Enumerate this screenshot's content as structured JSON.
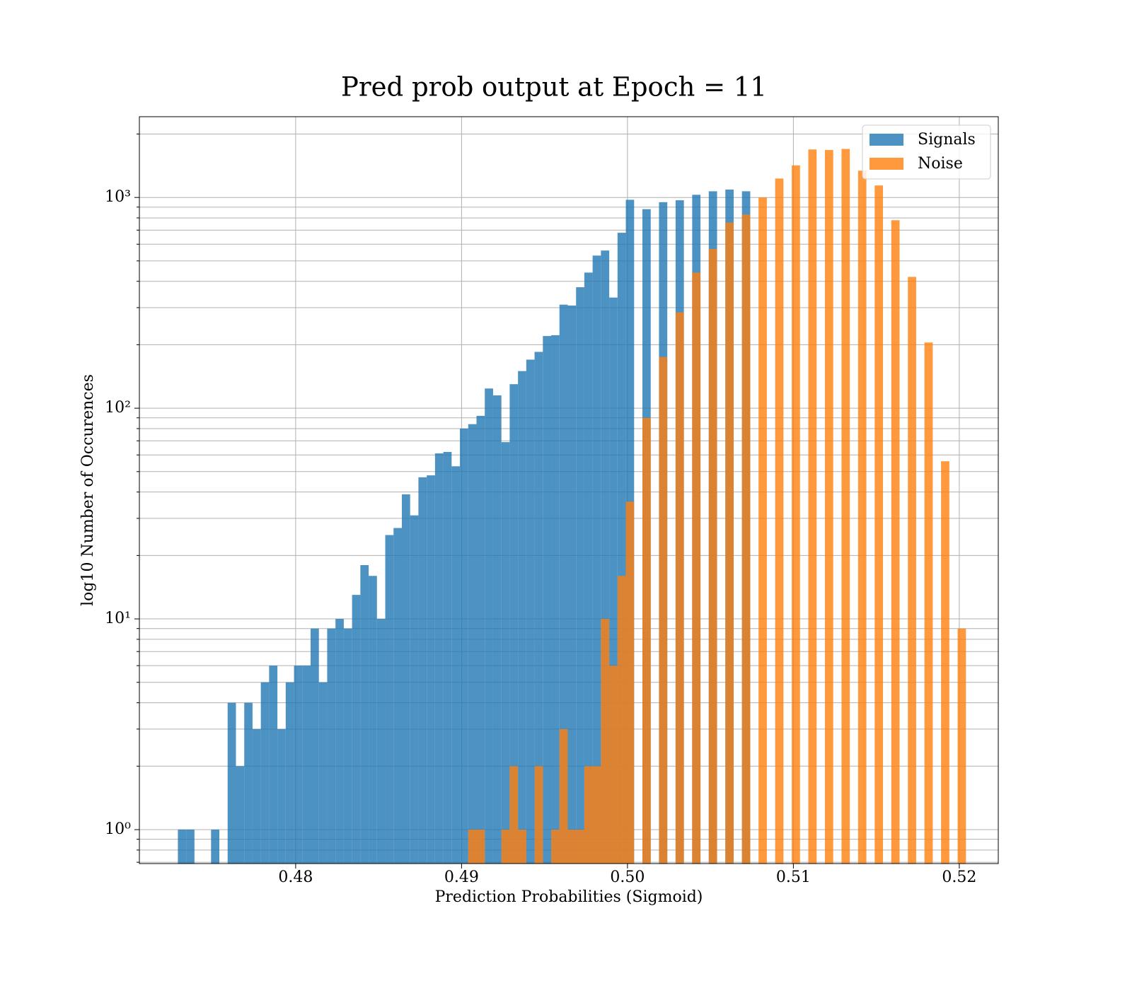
{
  "chart_data": {
    "type": "histogram",
    "title": "Pred prob output at Epoch = 11",
    "xlabel": "Prediction Probabilities (Sigmoid)",
    "ylabel": "log10 Number of Occurences",
    "bins": [
      0.4729,
      0.4734,
      0.4739,
      0.4744,
      0.4749,
      0.4754,
      0.4759,
      0.4764,
      0.4769,
      0.4774,
      0.4779,
      0.4784,
      0.4789,
      0.4794,
      0.4799,
      0.4804,
      0.4809,
      0.4814,
      0.4819,
      0.4824,
      0.4829,
      0.4834,
      0.4839,
      0.4844,
      0.4849,
      0.4854,
      0.4859,
      0.4864,
      0.4869,
      0.4874,
      0.4879,
      0.4884,
      0.4889,
      0.4894,
      0.4899,
      0.4904,
      0.4909,
      0.4914,
      0.4919,
      0.4924,
      0.4929,
      0.4934,
      0.4939,
      0.4944,
      0.4949,
      0.4954,
      0.4959,
      0.4964,
      0.4969,
      0.4974,
      0.4979,
      0.4984,
      0.4989,
      0.4994,
      0.4999,
      0.5004,
      0.5009,
      0.5014,
      0.5019,
      0.5024,
      0.5029,
      0.5034,
      0.5039,
      0.5044,
      0.5049,
      0.5054,
      0.5059,
      0.5064,
      0.5069,
      0.5074,
      0.5079,
      0.5084,
      0.5089,
      0.5094,
      0.5099,
      0.5104,
      0.5109,
      0.5114,
      0.5119,
      0.5124,
      0.5129,
      0.5134,
      0.5139,
      0.5144,
      0.5149,
      0.5154,
      0.5159,
      0.5164,
      0.5169,
      0.5174,
      0.5179,
      0.5184,
      0.5189,
      0.5194,
      0.5199,
      0.5204,
      0.5209
    ],
    "series": [
      {
        "name": "Signals",
        "color": "#1f77b4",
        "values": [
          1,
          1,
          0,
          0,
          1,
          0,
          4,
          2,
          4,
          3,
          5,
          6,
          3,
          5,
          6,
          6,
          9,
          5,
          9,
          10,
          9,
          13,
          18,
          16,
          10,
          25,
          27,
          39,
          31,
          47,
          48,
          61,
          62,
          53,
          80,
          84,
          92,
          124,
          115,
          69,
          130,
          150,
          170,
          185,
          220,
          222,
          310,
          307,
          375,
          440,
          530,
          560,
          335,
          680,
          975,
          0,
          880,
          0,
          950,
          0,
          970,
          0,
          1030,
          0,
          1070,
          0,
          1090,
          0,
          1070,
          0,
          0,
          0,
          0,
          0,
          0,
          0,
          0,
          0,
          0,
          0,
          0,
          0,
          0,
          0,
          0,
          0,
          0,
          0,
          0,
          0,
          0,
          0,
          0,
          0,
          0,
          0
        ]
      },
      {
        "name": "Noise",
        "color": "#ff7f0e",
        "values": [
          0,
          0,
          0,
          0,
          0,
          0,
          0,
          0,
          0,
          0,
          0,
          0,
          0,
          0,
          0,
          0,
          0,
          0,
          0,
          0,
          0,
          0,
          0,
          0,
          0,
          0,
          0,
          0,
          0,
          0,
          0,
          0,
          0,
          0,
          0,
          1,
          1,
          0,
          0,
          1,
          2,
          1,
          0,
          2,
          0,
          1,
          3,
          1,
          1,
          2,
          2,
          10,
          6,
          16,
          36,
          0,
          90,
          0,
          175,
          0,
          285,
          0,
          440,
          0,
          570,
          0,
          760,
          0,
          830,
          0,
          1000,
          0,
          1230,
          0,
          1420,
          0,
          1690,
          0,
          1680,
          0,
          1700,
          0,
          1340,
          0,
          1140,
          0,
          780,
          0,
          420,
          0,
          205,
          0,
          56,
          0,
          9,
          0
        ]
      }
    ],
    "xlim": [
      0.47058,
      0.52235
    ],
    "xticks": [
      0.48,
      0.49,
      {
        "value": 0.5,
        "label": "0.50"
      },
      0.51,
      0.52
    ],
    "ylim": [
      0.69,
      2417
    ],
    "yscale": "log",
    "yticks": [
      {
        "value": 1,
        "label": "10⁰"
      },
      {
        "value": 10,
        "label": "10¹"
      },
      {
        "value": 100,
        "label": "10²"
      },
      {
        "value": 1000,
        "label": "10³"
      }
    ],
    "yminorticks": [
      0.7,
      0.8,
      0.9,
      2,
      3,
      4,
      5,
      6,
      7,
      8,
      9,
      20,
      30,
      40,
      50,
      60,
      70,
      80,
      90,
      200,
      300,
      400,
      500,
      600,
      700,
      800,
      900,
      2000
    ],
    "grid": true,
    "alpha": 0.8,
    "legend": "upper right"
  }
}
